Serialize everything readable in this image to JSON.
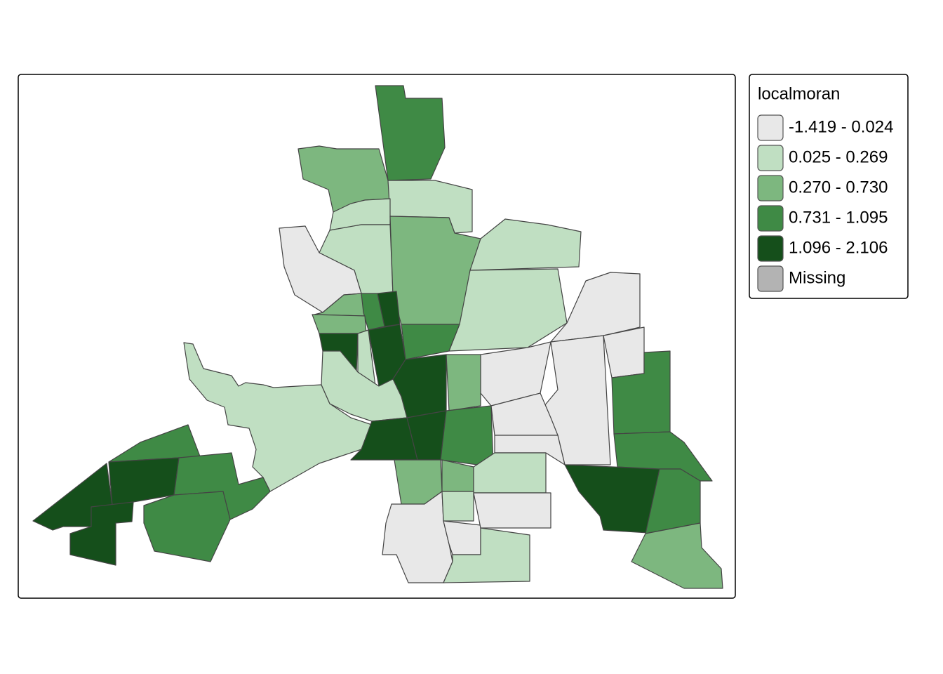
{
  "legend": {
    "title": "localmoran",
    "items": [
      {
        "label": "-1.419 - 0.024",
        "color": "#e8e8e8"
      },
      {
        "label": "0.025 - 0.269",
        "color": "#c0dfc2"
      },
      {
        "label": "0.270 - 0.730",
        "color": "#7db77f"
      },
      {
        "label": "0.731 - 1.095",
        "color": "#3f8a45"
      },
      {
        "label": "1.096 - 2.106",
        "color": "#154f1b"
      },
      {
        "label": "Missing",
        "color": "#b3b3b3"
      }
    ]
  }
}
